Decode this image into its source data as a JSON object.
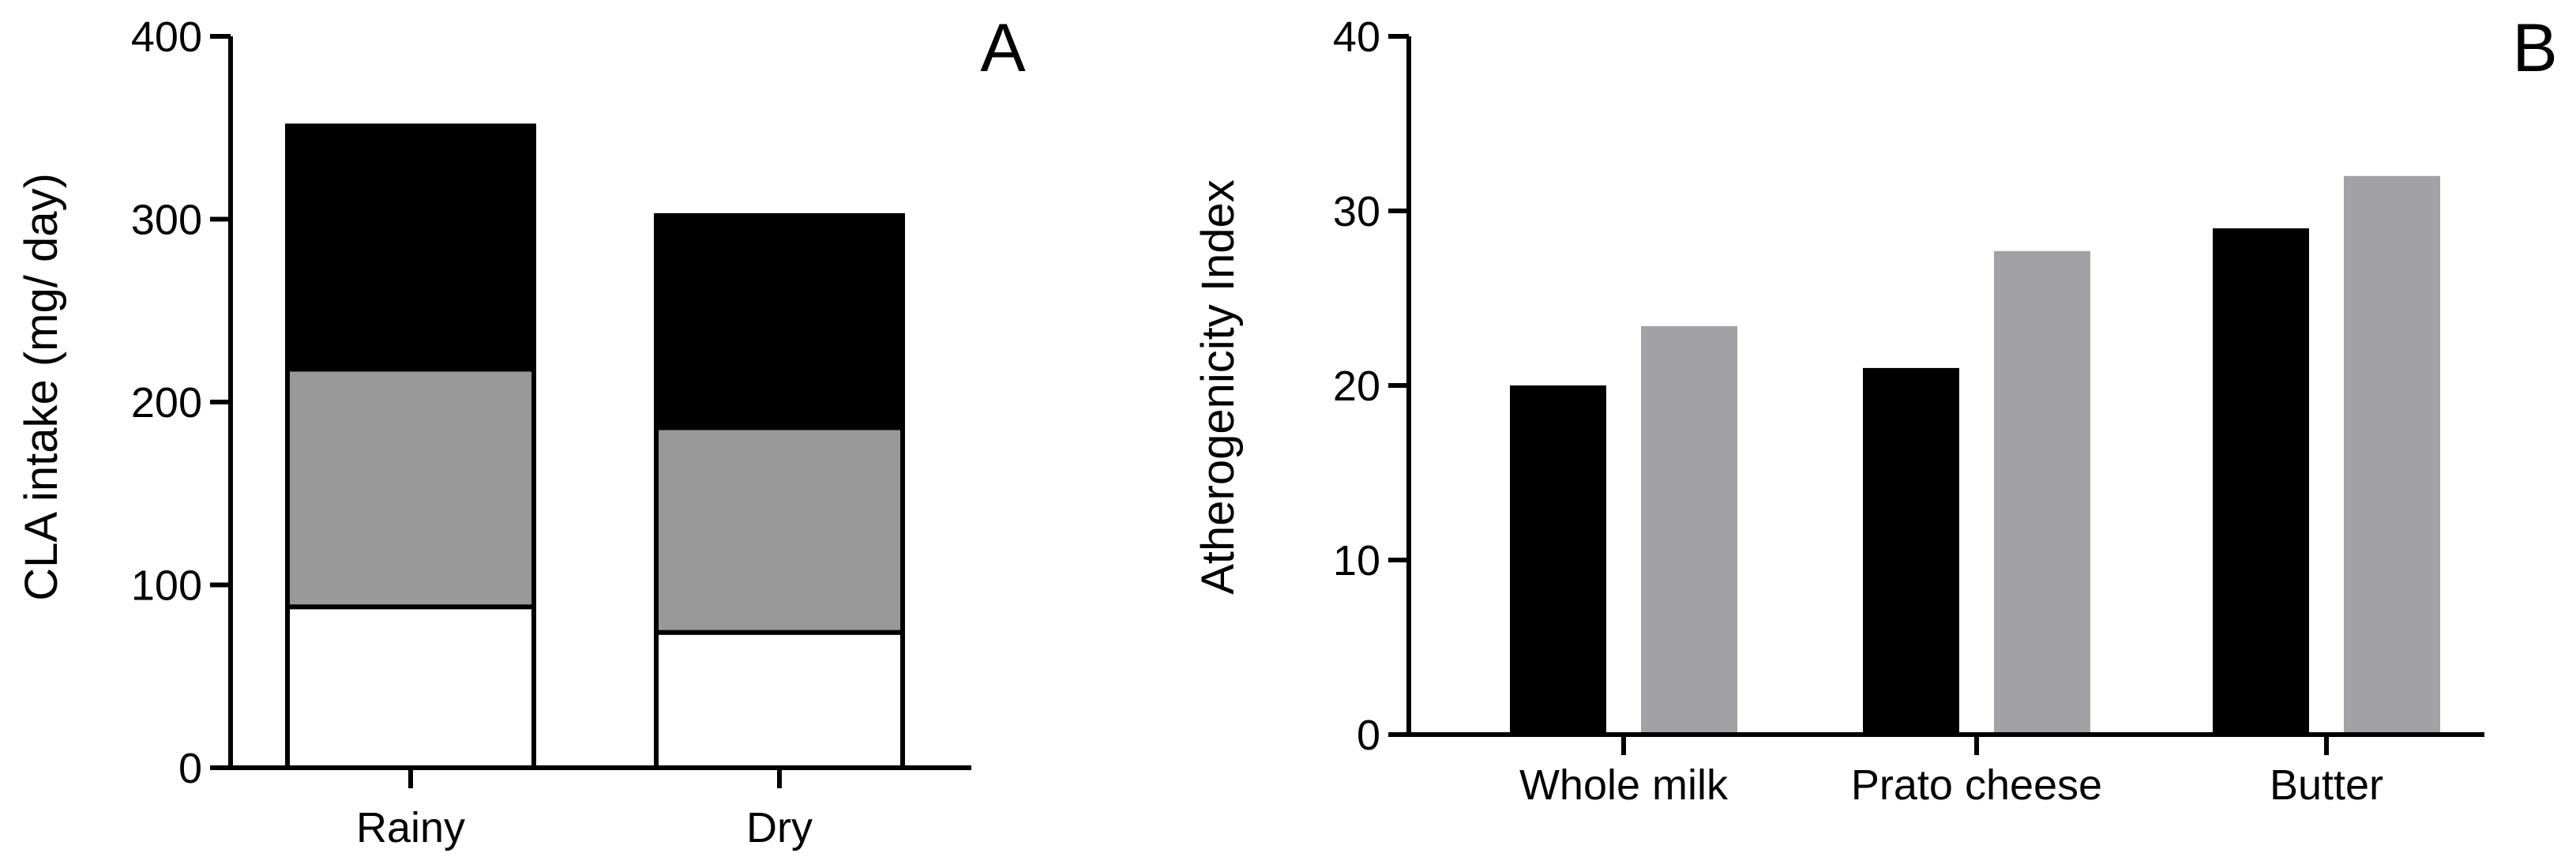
{
  "chart_data": [
    {
      "panel_label": "A",
      "type": "bar",
      "stacked": true,
      "categories": [
        "Rainy",
        "Dry"
      ],
      "series": [
        {
          "name": "",
          "color": "#ffffff",
          "values": [
            88,
            74
          ]
        },
        {
          "name": "",
          "color": "#999999",
          "values": [
            130,
            112
          ]
        },
        {
          "name": "",
          "color": "#000000",
          "values": [
            133,
            116
          ]
        }
      ],
      "title": "",
      "xlabel": "",
      "ylabel": "CLA intake (mg/ day)",
      "ylim": [
        0,
        400
      ],
      "yticks": [
        0,
        100,
        200,
        300,
        400
      ],
      "grid": false
    },
    {
      "panel_label": "B",
      "type": "bar",
      "stacked": false,
      "categories": [
        "Whole milk",
        "Prato cheese",
        "Butter"
      ],
      "series": [
        {
          "name": "",
          "color": "#000000",
          "values": [
            20,
            21,
            29
          ]
        },
        {
          "name": "",
          "color": "#a2a1a6",
          "values": [
            23.4,
            27.7,
            32
          ]
        }
      ],
      "title": "",
      "xlabel": "",
      "ylabel": "Atherogenicity Index",
      "ylim": [
        0,
        40
      ],
      "yticks": [
        0,
        10,
        20,
        30,
        40
      ],
      "grid": false
    }
  ]
}
